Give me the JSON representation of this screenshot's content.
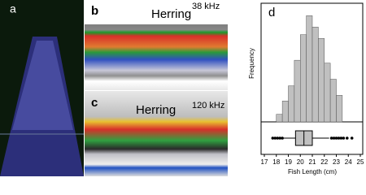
{
  "panels": {
    "a": "a",
    "b": "b",
    "c": "c",
    "b_annotation": "Herring",
    "b_frequency": "38 kHz",
    "c_annotation": "Herring",
    "c_frequency": "120 kHz"
  },
  "chart_data": {
    "type": "histogram",
    "panel_label": "d",
    "xlabel": "Fish Length (cm)",
    "ylabel": "Frequency",
    "bins": [
      18,
      18.5,
      19,
      19.5,
      20,
      20.5,
      21,
      21.5,
      22,
      22.5,
      23,
      23.5
    ],
    "counts": [
      8,
      22,
      38,
      65,
      92,
      112,
      100,
      88,
      62,
      45,
      28
    ],
    "color": "#c0c0c0",
    "xlim": [
      17,
      25
    ],
    "xticks": [
      17,
      18,
      19,
      20,
      21,
      22,
      23,
      24,
      25
    ],
    "ylim": [
      0,
      120
    ],
    "boxplot": {
      "whisker_low": 18.6,
      "q1": 19.6,
      "median": 20.3,
      "q3": 21.0,
      "whisker_high": 22.4,
      "outliers": [
        17.7,
        17.9,
        18.1,
        18.3,
        18.5,
        22.6,
        22.8,
        23.0,
        23.2,
        23.4,
        23.6,
        23.9,
        24.3
      ]
    }
  }
}
